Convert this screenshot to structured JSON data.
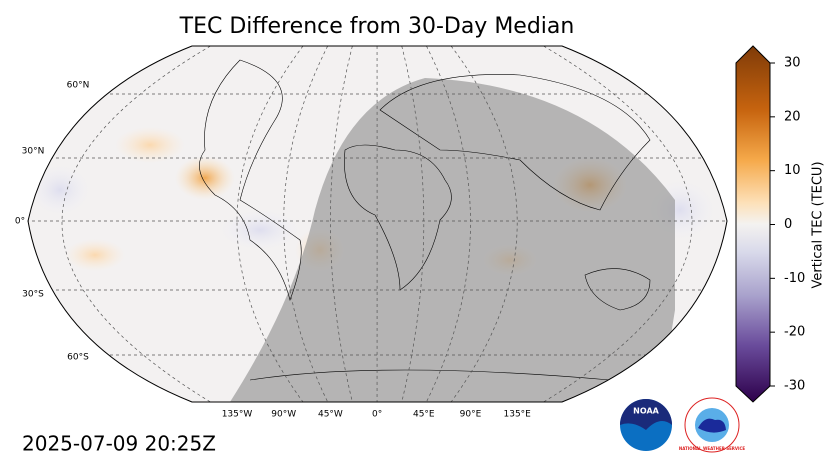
{
  "title": "TEC Difference from 30-Day Median",
  "timestamp": "2025-07-09 20:25Z",
  "map": {
    "lat_labels": [
      "60°N",
      "30°N",
      "0°",
      "30°S",
      "60°S"
    ],
    "lon_labels": [
      "135°W",
      "90°W",
      "45°W",
      "0°",
      "45°E",
      "90°E",
      "135°E"
    ]
  },
  "colorbar": {
    "label": "Vertical TEC (TECU)",
    "ylim": [
      -30,
      30
    ],
    "yticks": [
      30,
      20,
      10,
      0,
      -10,
      -20,
      -30
    ]
  },
  "logos": {
    "noaa": "NOAA",
    "nws": "NATIONAL WEATHER SERVICE"
  }
}
